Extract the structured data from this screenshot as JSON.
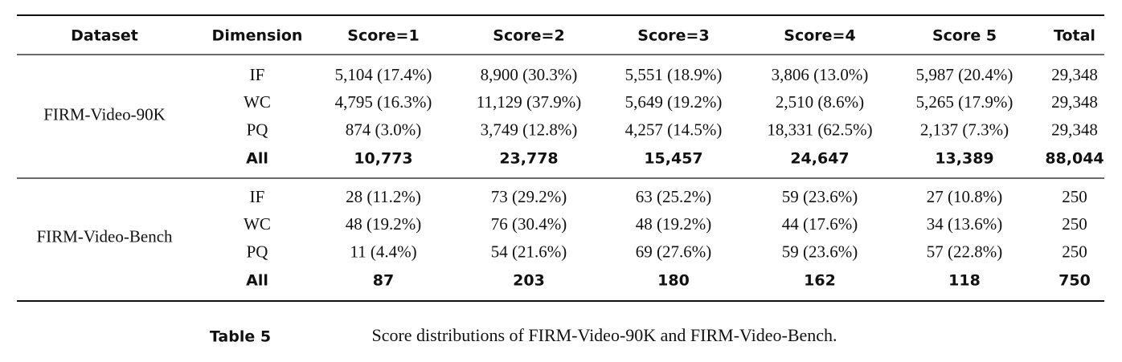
{
  "table": {
    "header": [
      "Dataset",
      "Dimension",
      "Score=1",
      "Score=2",
      "Score=3",
      "Score=4",
      "Score 5",
      "Total"
    ],
    "groups": [
      {
        "dataset": "FIRM-Video-90K",
        "rows": [
          [
            "IF",
            "5,104 (17.4%)",
            "8,900 (30.3%)",
            "5,551 (18.9%)",
            "3,806 (13.0%)",
            "5,987 (20.4%)",
            "29,348"
          ],
          [
            "WC",
            "4,795 (16.3%)",
            "11,129 (37.9%)",
            "5,649 (19.2%)",
            "2,510 (8.6%)",
            "5,265 (17.9%)",
            "29,348"
          ],
          [
            "PQ",
            "874 (3.0%)",
            "3,749 (12.8%)",
            "4,257 (14.5%)",
            "18,331 (62.5%)",
            "2,137 (7.3%)",
            "29,348"
          ]
        ],
        "all_row": [
          "All",
          "10,773",
          "23,778",
          "15,457",
          "24,647",
          "13,389",
          "88,044"
        ]
      },
      {
        "dataset": "FIRM-Video-Bench",
        "rows": [
          [
            "IF",
            "28 (11.2%)",
            "73 (29.2%)",
            "63 (25.2%)",
            "59 (23.6%)",
            "27 (10.8%)",
            "250"
          ],
          [
            "WC",
            "48 (19.2%)",
            "76 (30.4%)",
            "48 (19.2%)",
            "44 (17.6%)",
            "34 (13.6%)",
            "250"
          ],
          [
            "PQ",
            "11 (4.4%)",
            "54 (21.6%)",
            "69 (27.6%)",
            "59 (23.6%)",
            "57 (22.8%)",
            "250"
          ]
        ],
        "all_row": [
          "All",
          "87",
          "203",
          "180",
          "162",
          "118",
          "750"
        ]
      }
    ]
  },
  "caption": {
    "label": "Table 5",
    "text": "Score distributions of FIRM-Video-90K and FIRM-Video-Bench."
  }
}
